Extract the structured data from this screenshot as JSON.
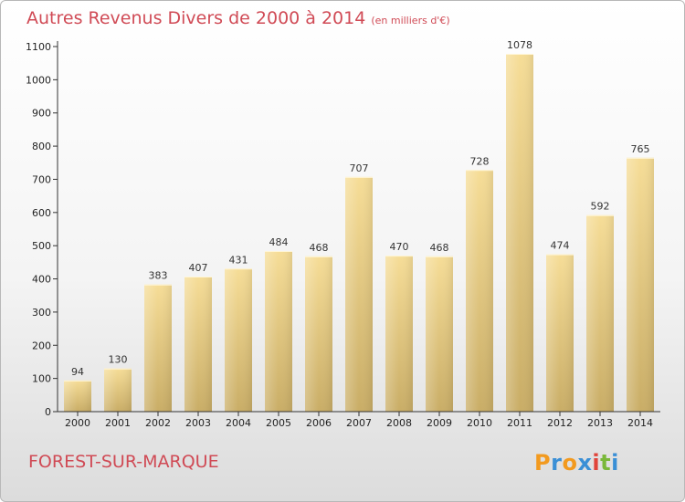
{
  "chart_data": {
    "type": "bar",
    "title": "Autres Revenus Divers de 2000 à 2014",
    "unit_note": "(en milliers d'€)",
    "categories": [
      "2000",
      "2001",
      "2002",
      "2003",
      "2004",
      "2005",
      "2006",
      "2007",
      "2008",
      "2009",
      "2010",
      "2011",
      "2012",
      "2013",
      "2014"
    ],
    "values": [
      94,
      130,
      383,
      407,
      431,
      484,
      468,
      707,
      470,
      468,
      728,
      1078,
      474,
      592,
      765
    ],
    "ylim": [
      0,
      1100
    ],
    "yticks": [
      0,
      100,
      200,
      300,
      400,
      500,
      600,
      700,
      800,
      900,
      1000,
      1100
    ],
    "grid": false,
    "bar_color": "#e8cf86"
  },
  "location": "FOREST-SUR-MARQUE",
  "logo": {
    "text": "Proxiti",
    "colors": [
      "#f29a1f",
      "#3a8fd6",
      "#f29a1f",
      "#3a8fd6",
      "#e0443a",
      "#7ab83a",
      "#3a8fd6"
    ]
  },
  "colors": {
    "title": "#d04a55",
    "axis": "#333333"
  }
}
